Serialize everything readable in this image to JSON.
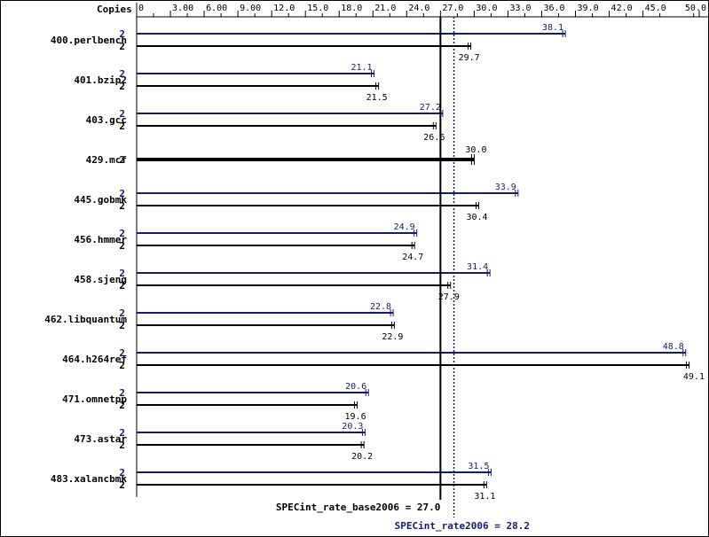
{
  "chart_data": {
    "type": "bar",
    "orientation": "horizontal",
    "x_axis_label": "Copies",
    "xlim": [
      0,
      50.0
    ],
    "major_ticks": [
      "0",
      "3.00",
      "6.00",
      "9.00",
      "12.0",
      "15.0",
      "18.0",
      "21.0",
      "24.0",
      "27.0",
      "30.0",
      "33.0",
      "36.0",
      "39.0",
      "42.0",
      "45.0",
      "50.0"
    ],
    "major_tick_values": [
      0,
      3,
      6,
      9,
      12,
      15,
      18,
      21,
      24,
      27,
      30,
      33,
      36,
      39,
      42,
      45,
      50
    ],
    "grid": false,
    "series": [
      {
        "name": "SPECint_rate2006",
        "color": "#191970"
      },
      {
        "name": "SPECint_rate_base2006",
        "color": "#000000"
      }
    ],
    "benchmarks": [
      {
        "name": "400.perlbench",
        "peak": {
          "copies": "2",
          "value": 38.1,
          "label": "38.1"
        },
        "base": {
          "copies": "2",
          "value": 29.7,
          "label": "29.7"
        }
      },
      {
        "name": "401.bzip2",
        "peak": {
          "copies": "2",
          "value": 21.1,
          "label": "21.1"
        },
        "base": {
          "copies": "2",
          "value": 21.5,
          "label": "21.5"
        }
      },
      {
        "name": "403.gcc",
        "peak": {
          "copies": "2",
          "value": 27.2,
          "label": "27.2"
        },
        "base": {
          "copies": "2",
          "value": 26.6,
          "label": "26.6"
        }
      },
      {
        "name": "429.mcf",
        "peak": null,
        "base": {
          "copies": "2",
          "value": 30.0,
          "label": "30.0"
        }
      },
      {
        "name": "445.gobmk",
        "peak": {
          "copies": "2",
          "value": 33.9,
          "label": "33.9"
        },
        "base": {
          "copies": "2",
          "value": 30.4,
          "label": "30.4"
        }
      },
      {
        "name": "456.hmmer",
        "peak": {
          "copies": "2",
          "value": 24.9,
          "label": "24.9"
        },
        "base": {
          "copies": "2",
          "value": 24.7,
          "label": "24.7"
        }
      },
      {
        "name": "458.sjeng",
        "peak": {
          "copies": "2",
          "value": 31.4,
          "label": "31.4"
        },
        "base": {
          "copies": "2",
          "value": 27.9,
          "label": "27.9"
        }
      },
      {
        "name": "462.libquantum",
        "peak": {
          "copies": "2",
          "value": 22.8,
          "label": "22.8"
        },
        "base": {
          "copies": "2",
          "value": 22.9,
          "label": "22.9"
        }
      },
      {
        "name": "464.h264ref",
        "peak": {
          "copies": "2",
          "value": 48.8,
          "label": "48.8"
        },
        "base": {
          "copies": "2",
          "value": 49.1,
          "label": "49.1"
        }
      },
      {
        "name": "471.omnetpp",
        "peak": {
          "copies": "2",
          "value": 20.6,
          "label": "20.6"
        },
        "base": {
          "copies": "2",
          "value": 19.6,
          "label": "19.6"
        }
      },
      {
        "name": "473.astar",
        "peak": {
          "copies": "2",
          "value": 20.3,
          "label": "20.3"
        },
        "base": {
          "copies": "2",
          "value": 20.2,
          "label": "20.2"
        }
      },
      {
        "name": "483.xalancbmk",
        "peak": {
          "copies": "2",
          "value": 31.5,
          "label": "31.5"
        },
        "base": {
          "copies": "2",
          "value": 31.1,
          "label": "31.1"
        }
      }
    ],
    "reference_lines": {
      "base": {
        "label": "SPECint_rate_base2006 = 27.0",
        "value": 27.0,
        "style": "solid",
        "color": "#000000"
      },
      "peak": {
        "label": "SPECint_rate2006 = 28.2",
        "value": 28.2,
        "style": "dotted",
        "color": "#191970"
      }
    }
  }
}
